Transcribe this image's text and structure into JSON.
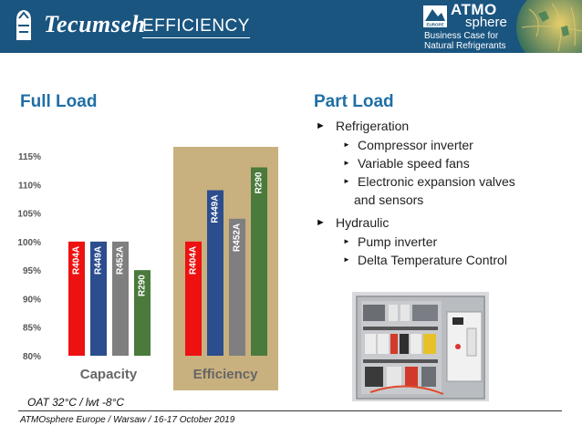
{
  "header": {
    "brand": "Tecumseh",
    "section_title": "EFFICIENCY",
    "atmo_name": "ATMO",
    "atmo_sphere": "sphere",
    "atmo_badge": "EUROPE",
    "atmo_tagline_1": "Business Case for",
    "atmo_tagline_2": "Natural Refrigerants"
  },
  "left_heading": "Full Load",
  "right_heading": "Part Load",
  "chart_data": {
    "type": "bar",
    "groups": [
      "Capacity",
      "Efficiency"
    ],
    "y_ticks": [
      "115%",
      "110%",
      "105%",
      "100%",
      "95%",
      "90%",
      "85%",
      "80%"
    ],
    "ylim": [
      80,
      117
    ],
    "grid": false,
    "highlight_group": "Efficiency",
    "series": [
      {
        "name": "R404A",
        "color": "#ee1111",
        "values": [
          100,
          100
        ]
      },
      {
        "name": "R449A",
        "color": "#2c4d8e",
        "values": [
          100,
          109
        ]
      },
      {
        "name": "R452A",
        "color": "#7f7f7f",
        "values": [
          100,
          104
        ]
      },
      {
        "name": "R290",
        "color": "#4a7a3c",
        "values": [
          95,
          113
        ]
      }
    ]
  },
  "part_load": {
    "items": [
      {
        "label": "Refrigeration",
        "subitems": [
          "Compressor inverter",
          "Variable speed fans",
          "Electronic expansion valves"
        ],
        "continuation": "and sensors"
      },
      {
        "label": "Hydraulic",
        "subitems": [
          "Pump inverter",
          "Delta Temperature Control"
        ]
      }
    ],
    "bullet": "►",
    "sub_bullet": "►"
  },
  "note": "OAT 32°C / lwt -8°C",
  "footer": "ATMOsphere Europe / Warsaw / 16-17 October 2019",
  "colors": {
    "header_bg": "#1a5580",
    "heading": "#1f6fa6",
    "highlight_bg": "#c9b07f"
  }
}
